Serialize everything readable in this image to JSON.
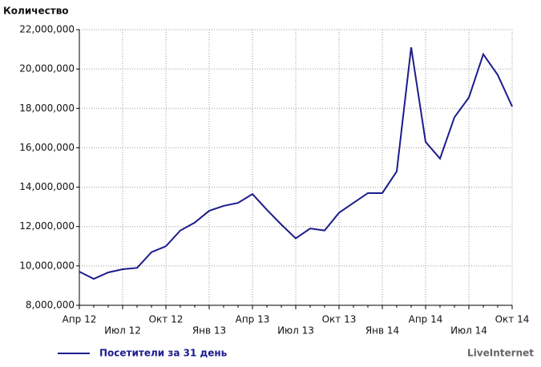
{
  "chart_data": {
    "type": "line",
    "y_label": "Количество",
    "categories": [
      "Апр 12",
      null,
      null,
      "Июл 12",
      null,
      null,
      "Окт 12",
      null,
      null,
      "Янв 13",
      null,
      null,
      "Апр 13",
      null,
      null,
      "Июл 13",
      null,
      null,
      "Окт 13",
      null,
      null,
      "Янв 14",
      null,
      null,
      "Апр 14",
      null,
      null,
      "Июл 14",
      null,
      null,
      "Окт 14"
    ],
    "series": [
      {
        "name": "Посетители за 31 день",
        "color": "#1c1c8c",
        "values": [
          9710000,
          9340000,
          9670000,
          9830000,
          9900000,
          10700000,
          11000000,
          11800000,
          12200000,
          12800000,
          13050000,
          13200000,
          13650000,
          12850000,
          12100000,
          11400000,
          11900000,
          11800000,
          12700000,
          13200000,
          13700000,
          13700000,
          14800000,
          21100000,
          16300000,
          15450000,
          17550000,
          18550000,
          20750000,
          19700000,
          18100000
        ]
      }
    ],
    "ylim": [
      8000000,
      22000000
    ],
    "yticks": [
      {
        "value": 8000000,
        "label": "8,000,000"
      },
      {
        "value": 10000000,
        "label": "10,000,000"
      },
      {
        "value": 12000000,
        "label": "12,000,000"
      },
      {
        "value": 14000000,
        "label": "14,000,000"
      },
      {
        "value": 16000000,
        "label": "16,000,000"
      },
      {
        "value": 18000000,
        "label": "18,000,000"
      },
      {
        "value": 20000000,
        "label": "20,000,000"
      },
      {
        "value": 22000000,
        "label": "22,000,000"
      }
    ],
    "grid": true,
    "watermark": "LiveInternet"
  }
}
